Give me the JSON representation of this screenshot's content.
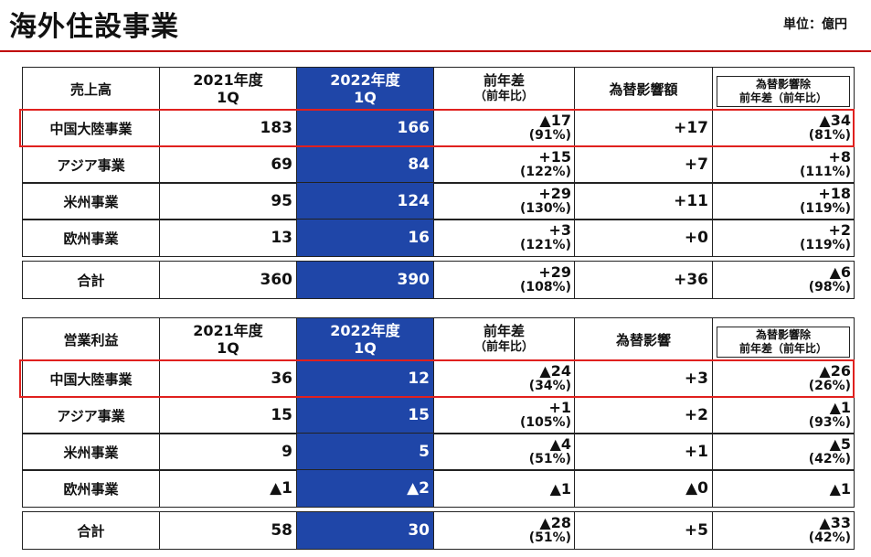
{
  "page": {
    "title": "海外住設事業",
    "unit": "単位：億円"
  },
  "colors": {
    "accent_fill": "#1f46a8",
    "highlight": "#e0201e",
    "rule": "#c00000"
  },
  "sales": {
    "header": {
      "label": "売上高",
      "y2021": [
        "2021年度",
        "1Q"
      ],
      "y2022": [
        "2022年度",
        "1Q"
      ],
      "diff": [
        "前年差",
        "（前年比）"
      ],
      "fx": "為替影響額",
      "fx_ex": [
        "為替影響除",
        "前年差（前年比）"
      ]
    },
    "rows": [
      {
        "name": "中国大陸事業",
        "v2021": "183",
        "v2022": "166",
        "diff": "▲17",
        "diff_pct": "(91%)",
        "fx": "+17",
        "ex": "▲34",
        "ex_pct": "(81%)"
      },
      {
        "name": "アジア事業",
        "v2021": "69",
        "v2022": "84",
        "diff": "+15",
        "diff_pct": "(122%)",
        "fx": "+7",
        "ex": "+8",
        "ex_pct": "(111%)"
      },
      {
        "name": "米州事業",
        "v2021": "95",
        "v2022": "124",
        "diff": "+29",
        "diff_pct": "(130%)",
        "fx": "+11",
        "ex": "+18",
        "ex_pct": "(119%)"
      },
      {
        "name": "欧州事業",
        "v2021": "13",
        "v2022": "16",
        "diff": "+3",
        "diff_pct": "(121%)",
        "fx": "+0",
        "ex": "+2",
        "ex_pct": "(119%)"
      }
    ],
    "total": {
      "name": "合計",
      "v2021": "360",
      "v2022": "390",
      "diff": "+29",
      "diff_pct": "(108%)",
      "fx": "+36",
      "ex": "▲6",
      "ex_pct": "(98%)"
    }
  },
  "profit": {
    "header": {
      "label": "営業利益",
      "y2021": [
        "2021年度",
        "1Q"
      ],
      "y2022": [
        "2022年度",
        "1Q"
      ],
      "diff": [
        "前年差",
        "（前年比）"
      ],
      "fx": "為替影響",
      "fx_ex": [
        "為替影響除",
        "前年差（前年比）"
      ]
    },
    "rows": [
      {
        "name": "中国大陸事業",
        "v2021": "36",
        "v2022": "12",
        "diff": "▲24",
        "diff_pct": "(34%)",
        "fx": "+3",
        "ex": "▲26",
        "ex_pct": "(26%)"
      },
      {
        "name": "アジア事業",
        "v2021": "15",
        "v2022": "15",
        "diff": "+1",
        "diff_pct": "(105%)",
        "fx": "+2",
        "ex": "▲1",
        "ex_pct": "(93%)"
      },
      {
        "name": "米州事業",
        "v2021": "9",
        "v2022": "5",
        "diff": "▲4",
        "diff_pct": "(51%)",
        "fx": "+1",
        "ex": "▲5",
        "ex_pct": "(42%)"
      },
      {
        "name": "欧州事業",
        "v2021": "▲1",
        "v2022": "▲2",
        "diff": "▲1",
        "diff_pct": "",
        "fx": "▲0",
        "ex": "▲1",
        "ex_pct": ""
      }
    ],
    "total": {
      "name": "合計",
      "v2021": "58",
      "v2022": "30",
      "diff": "▲28",
      "diff_pct": "(51%)",
      "fx": "+5",
      "ex": "▲33",
      "ex_pct": "(42%)"
    }
  }
}
